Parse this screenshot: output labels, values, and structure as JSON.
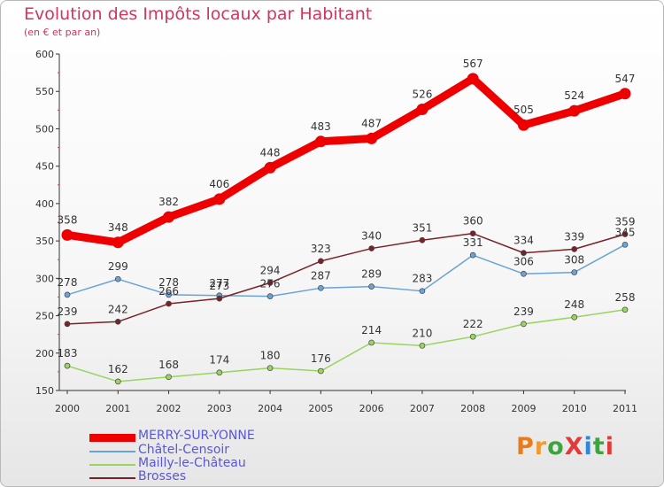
{
  "header": {
    "title": "Evolution des Impôts locaux par Habitant",
    "subtitle": "(en € et par an)"
  },
  "logo": {
    "text": "ProXiti",
    "colors": [
      "#e87b1e",
      "#f09b2f",
      "#3fa33f",
      "#e03a3a",
      "#2e86d8",
      "#3fa33f",
      "#e03a3a"
    ]
  },
  "chart_data": {
    "type": "line",
    "x": [
      "2000",
      "2001",
      "2002",
      "2003",
      "2004",
      "2005",
      "2006",
      "2007",
      "2008",
      "2009",
      "2010",
      "2011"
    ],
    "ylim": [
      150,
      600
    ],
    "yticks": [
      "150",
      "200",
      "250",
      "300",
      "350",
      "400",
      "450",
      "500",
      "550",
      "600"
    ],
    "grid": false,
    "legend_position": "bottom-left",
    "series": [
      {
        "name": "MERRY-SUR-YONNE",
        "color": "#ee0000",
        "values": [
          358,
          348,
          382,
          406,
          448,
          483,
          487,
          526,
          567,
          505,
          524,
          547
        ],
        "labels": [
          "358",
          "348",
          "382",
          "406",
          "448",
          "483",
          "487",
          "526",
          "567",
          "505",
          "524",
          "547"
        ]
      },
      {
        "name": "Châtel-Censoir",
        "color": "#6aa3d6",
        "values": [
          278,
          299,
          278,
          277,
          276,
          287,
          289,
          283,
          331,
          306,
          308,
          345
        ],
        "labels": [
          "278",
          "299",
          "278",
          "277",
          "276",
          "287",
          "289",
          "283",
          "331",
          "306",
          "308",
          "345"
        ]
      },
      {
        "name": "Mailly-le-Château",
        "color": "#9ad460",
        "values": [
          183,
          162,
          168,
          174,
          180,
          176,
          214,
          210,
          222,
          239,
          248,
          258
        ],
        "labels": [
          "183",
          "162",
          "168",
          "174",
          "180",
          "176",
          "214",
          "210",
          "222",
          "239",
          "248",
          "258"
        ]
      },
      {
        "name": "Brosses",
        "color": "#7a2228",
        "values": [
          239,
          242,
          266,
          273,
          294,
          323,
          340,
          351,
          360,
          334,
          339,
          359
        ],
        "labels": [
          "239",
          "242",
          "266",
          "273",
          "294",
          "323",
          "340",
          "351",
          "360",
          "334",
          "339",
          "359"
        ]
      }
    ]
  }
}
